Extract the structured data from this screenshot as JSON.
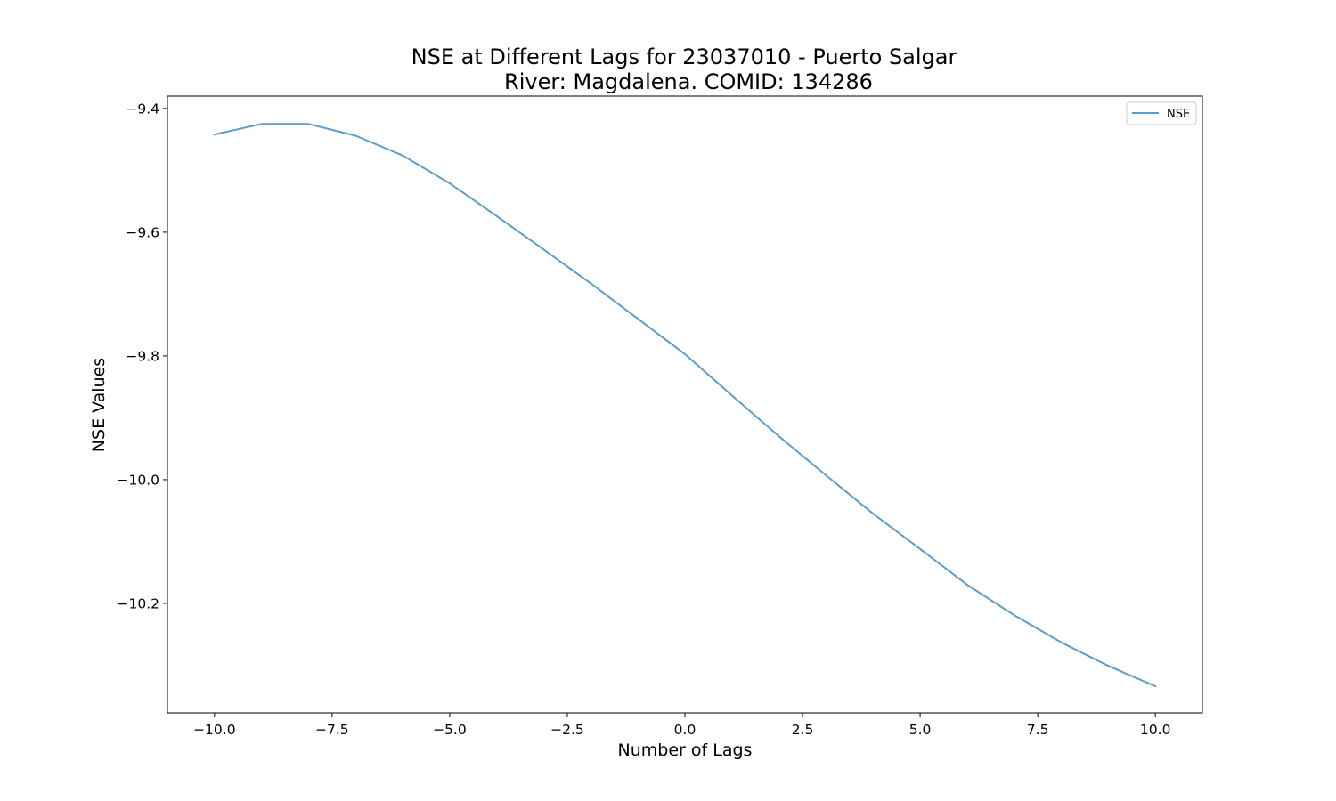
{
  "chart_data": {
    "type": "line",
    "title": "NSE at Different Lags for 23037010 - Puerto Salgar",
    "subtitle": "River: Magdalena. COMID: 134286",
    "xlabel": "Number of Lags",
    "ylabel": "NSE Values",
    "xlim": [
      -11.0,
      11.0
    ],
    "ylim": [
      -10.377,
      -9.38
    ],
    "xticks": [
      -10.0,
      -7.5,
      -5.0,
      -2.5,
      0.0,
      2.5,
      5.0,
      7.5,
      10.0
    ],
    "xtick_labels": [
      "−10.0",
      "−7.5",
      "−5.0",
      "−2.5",
      "0.0",
      "2.5",
      "5.0",
      "7.5",
      "10.0"
    ],
    "yticks": [
      -9.4,
      -9.6,
      -9.8,
      -10.0,
      -10.2
    ],
    "ytick_labels": [
      "−9.4",
      "−9.6",
      "−9.8",
      "−10.0",
      "−10.2"
    ],
    "grid": false,
    "legend_position": "top-right",
    "colors": {
      "line": "#5b9dcb"
    },
    "series": [
      {
        "name": "NSE",
        "x": [
          -10,
          -9,
          -8,
          -7,
          -6,
          -5,
          -4,
          -3,
          -2,
          -1,
          0,
          1,
          2,
          3,
          4,
          5,
          6,
          7,
          8,
          9,
          10
        ],
        "values": [
          -9.442,
          -9.425,
          -9.425,
          -9.444,
          -9.476,
          -9.521,
          -9.574,
          -9.628,
          -9.683,
          -9.74,
          -9.797,
          -9.864,
          -9.93,
          -9.993,
          -10.055,
          -10.112,
          -10.17,
          -10.219,
          -10.263,
          -10.301,
          -10.334
        ]
      }
    ]
  }
}
